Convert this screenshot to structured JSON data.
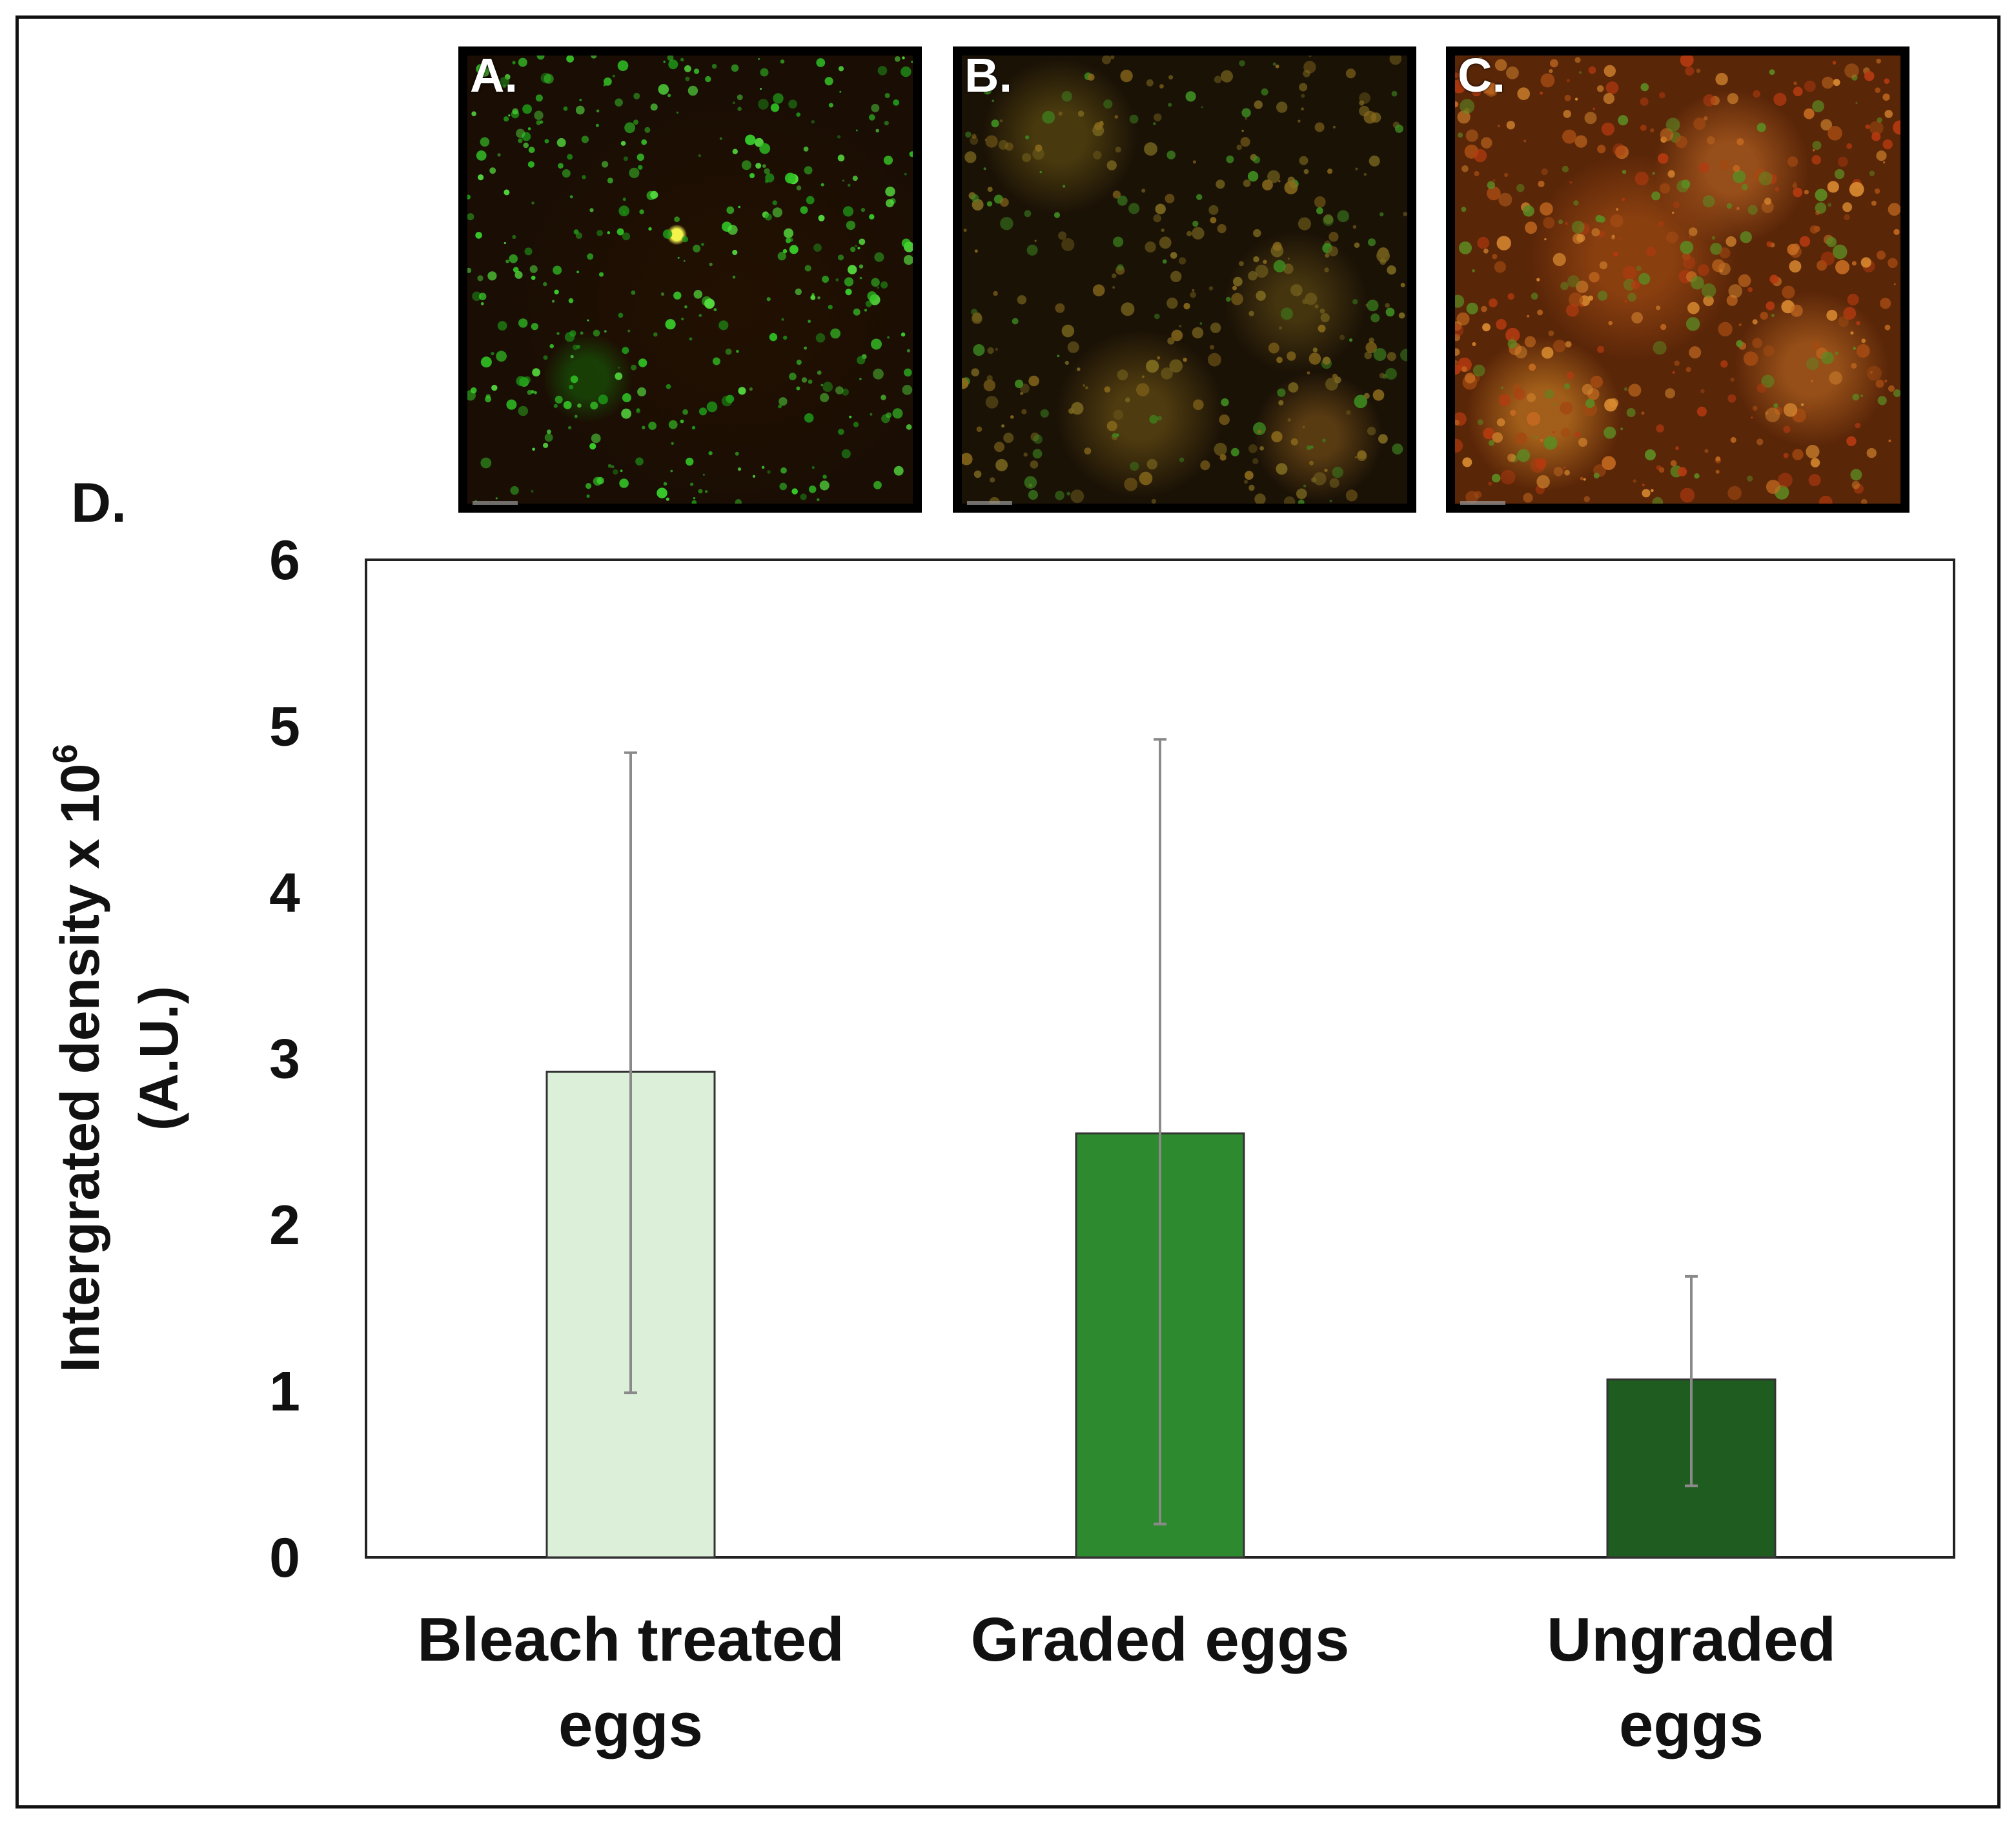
{
  "panels": [
    {
      "label": "A.",
      "name": "bleach-treated-micrograph"
    },
    {
      "label": "B.",
      "name": "graded-micrograph"
    },
    {
      "label": "C.",
      "name": "ungraded-micrograph"
    }
  ],
  "chart_panel_label": "D.",
  "chart_data": {
    "type": "bar",
    "title": "",
    "categories": [
      "Bleach treated eggs",
      "Graded eggs",
      "Ungraded eggs"
    ],
    "category_lines": [
      [
        "Bleach treated",
        "eggs"
      ],
      [
        "Graded eggs"
      ],
      [
        "Ungraded",
        "eggs"
      ]
    ],
    "values": [
      2.92,
      2.55,
      1.07
    ],
    "error_lower": [
      0.99,
      0.2,
      0.43
    ],
    "error_upper": [
      4.84,
      4.92,
      1.69
    ],
    "bar_colors": [
      "#dcefd8",
      "#2e8a2e",
      "#1f5c1f"
    ],
    "error_color": "#8a8a8a",
    "ylabel_line1": "Intergrated density x 10",
    "ylabel_exponent": "6",
    "ylabel_line2": "(A.U.)",
    "ylim": [
      0,
      6
    ],
    "yticks": [
      0,
      1,
      2,
      3,
      4,
      5,
      6
    ],
    "grid": false
  }
}
